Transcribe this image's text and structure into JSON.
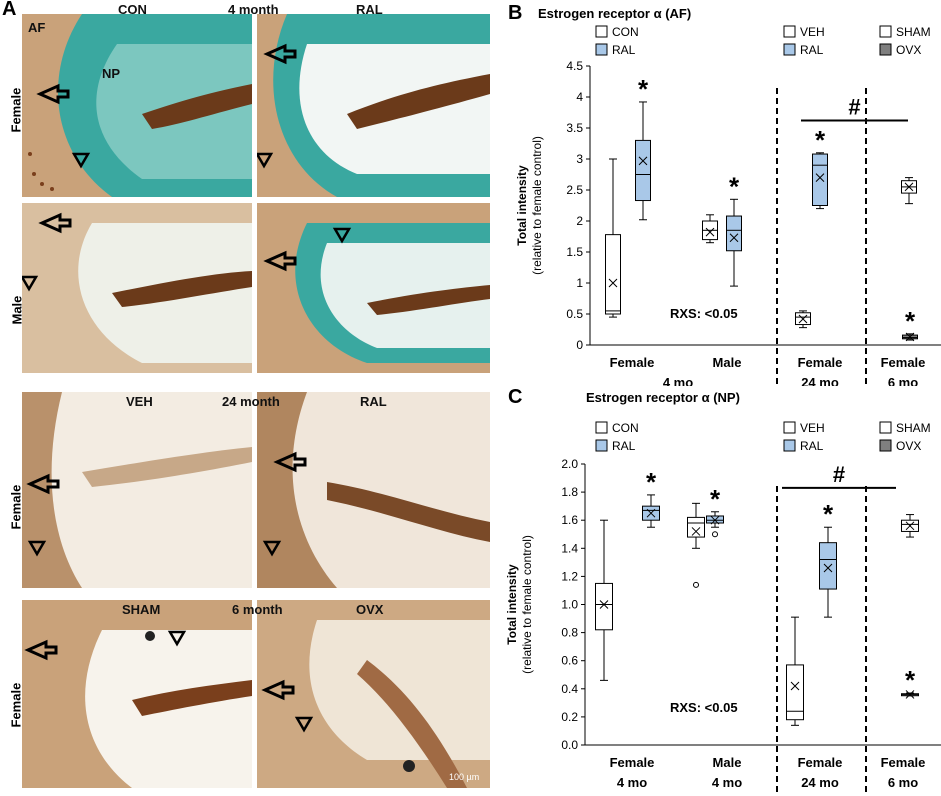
{
  "panel_a": {
    "letter": "A",
    "rows": [
      {
        "side_label": "Female",
        "left_label": "CON",
        "mid_label": "4 month",
        "right_label": "RAL"
      },
      {
        "side_label": "Male"
      },
      {
        "side_label": "Female",
        "left_label": "VEH",
        "mid_label": "24 month",
        "right_label": "RAL"
      },
      {
        "side_label": "Female",
        "left_label": "SHAM",
        "mid_label": "6 month",
        "right_label": "OVX"
      }
    ],
    "af_label": "AF",
    "np_label": "NP",
    "scale_label": "100 µm",
    "colors": {
      "tissue": "#c9a27a",
      "stain": "#3aa8a0",
      "pale": "#f3ece2",
      "dark": "#6b3a1a"
    }
  },
  "chart_data": [
    {
      "panel": "B",
      "type": "box",
      "title": "Estrogen receptor α (AF)",
      "ylabel": "Total intensity",
      "ylabel_sub": "(relative to female control)",
      "ylim": [
        0,
        4.5
      ],
      "yticks": [
        "0",
        "0.5",
        "1",
        "1.5",
        "2",
        "2.5",
        "3",
        "3.5",
        "4",
        "4.5"
      ],
      "legends": [
        {
          "items": [
            {
              "name": "CON",
              "color": "#ffffff"
            },
            {
              "name": "RAL",
              "color": "#a9c8e8"
            }
          ]
        },
        {
          "items": [
            {
              "name": "VEH",
              "color": "#ffffff"
            },
            {
              "name": "RAL",
              "color": "#a9c8e8"
            }
          ]
        },
        {
          "items": [
            {
              "name": "SHAM",
              "color": "#ffffff"
            },
            {
              "name": "OVX",
              "color": "#7f7f7f"
            }
          ]
        }
      ],
      "x_groups": [
        {
          "label": "Female",
          "sub": "4 mo"
        },
        {
          "label": "Male",
          "sub": ""
        },
        {
          "label": "Female",
          "sub": "24 mo"
        },
        {
          "label": "Female",
          "sub": "6 mo"
        }
      ],
      "boxes": [
        {
          "group": 0,
          "fill": "#ffffff",
          "min": 0.45,
          "q1": 0.5,
          "median": 0.55,
          "q3": 1.78,
          "max": 3.0,
          "mean": 1.0,
          "star": false
        },
        {
          "group": 0,
          "fill": "#a9c8e8",
          "min": 2.02,
          "q1": 2.33,
          "median": 2.75,
          "q3": 3.3,
          "max": 3.92,
          "mean": 2.97,
          "star": true
        },
        {
          "group": 1,
          "fill": "#ffffff",
          "min": 1.65,
          "q1": 1.7,
          "median": 1.85,
          "q3": 2.0,
          "max": 2.1,
          "mean": 1.82,
          "star": false
        },
        {
          "group": 1,
          "fill": "#a9c8e8",
          "min": 0.95,
          "q1": 1.52,
          "median": 1.85,
          "q3": 2.08,
          "max": 2.35,
          "mean": 1.73,
          "star": true
        },
        {
          "group": 2,
          "fill": "#ffffff",
          "min": 0.28,
          "q1": 0.33,
          "median": 0.45,
          "q3": 0.52,
          "max": 0.55,
          "mean": 0.42,
          "star": false
        },
        {
          "group": 2,
          "fill": "#a9c8e8",
          "min": 2.2,
          "q1": 2.25,
          "median": 2.9,
          "q3": 3.08,
          "max": 3.1,
          "mean": 2.7,
          "star": true
        },
        {
          "group": 3,
          "fill": "#ffffff",
          "min": 2.28,
          "q1": 2.45,
          "median": 2.55,
          "q3": 2.65,
          "max": 2.7,
          "mean": 2.55,
          "star": false
        },
        {
          "group": 3,
          "fill": "#7f7f7f",
          "min": 0.08,
          "q1": 0.1,
          "median": 0.12,
          "q3": 0.16,
          "max": 0.18,
          "mean": 0.13,
          "star": true
        }
      ],
      "annotation": "RXS: <0.05",
      "hash": "#",
      "hash_y": 3.62
    },
    {
      "panel": "C",
      "type": "box",
      "title": "Estrogen receptor α (NP)",
      "ylabel": "Total intensity",
      "ylabel_sub": "(relative to female control)",
      "ylim": [
        0,
        2.0
      ],
      "yticks": [
        "0.0",
        "0.2",
        "0.4",
        "0.6",
        "0.8",
        "1.0",
        "1.2",
        "1.4",
        "1.6",
        "1.8",
        "2.0"
      ],
      "legends": [
        {
          "items": [
            {
              "name": "CON",
              "color": "#ffffff"
            },
            {
              "name": "RAL",
              "color": "#a9c8e8"
            }
          ]
        },
        {
          "items": [
            {
              "name": "VEH",
              "color": "#ffffff"
            },
            {
              "name": "RAL",
              "color": "#a9c8e8"
            }
          ]
        },
        {
          "items": [
            {
              "name": "SHAM",
              "color": "#ffffff"
            },
            {
              "name": "OVX",
              "color": "#7f7f7f"
            }
          ]
        }
      ],
      "x_groups": [
        {
          "label": "Female",
          "sub": "4 mo"
        },
        {
          "label": "Male",
          "sub": "4 mo"
        },
        {
          "label": "Female",
          "sub": "24 mo"
        },
        {
          "label": "Female",
          "sub": "6 mo"
        }
      ],
      "boxes": [
        {
          "group": 0,
          "fill": "#ffffff",
          "min": 0.46,
          "q1": 0.82,
          "median": 1.0,
          "q3": 1.15,
          "max": 1.6,
          "mean": 1.0,
          "star": false,
          "outliers": []
        },
        {
          "group": 0,
          "fill": "#a9c8e8",
          "min": 1.55,
          "q1": 1.6,
          "median": 1.67,
          "q3": 1.7,
          "max": 1.78,
          "mean": 1.65,
          "star": true,
          "outliers": []
        },
        {
          "group": 1,
          "fill": "#ffffff",
          "min": 1.4,
          "q1": 1.48,
          "median": 1.58,
          "q3": 1.62,
          "max": 1.72,
          "mean": 1.52,
          "star": false,
          "outliers": [
            1.14
          ]
        },
        {
          "group": 1,
          "fill": "#a9c8e8",
          "min": 1.55,
          "q1": 1.58,
          "median": 1.6,
          "q3": 1.63,
          "max": 1.66,
          "mean": 1.6,
          "star": true,
          "outliers": [
            1.5
          ]
        },
        {
          "group": 2,
          "fill": "#ffffff",
          "min": 0.14,
          "q1": 0.18,
          "median": 0.24,
          "q3": 0.57,
          "max": 0.91,
          "mean": 0.42,
          "star": false,
          "outliers": []
        },
        {
          "group": 2,
          "fill": "#a9c8e8",
          "min": 0.91,
          "q1": 1.11,
          "median": 1.32,
          "q3": 1.44,
          "max": 1.55,
          "mean": 1.26,
          "star": true,
          "outliers": []
        },
        {
          "group": 3,
          "fill": "#ffffff",
          "min": 1.48,
          "q1": 1.52,
          "median": 1.57,
          "q3": 1.6,
          "max": 1.64,
          "mean": 1.56,
          "star": false,
          "outliers": []
        },
        {
          "group": 3,
          "fill": "#7f7f7f",
          "min": 0.35,
          "q1": 0.355,
          "median": 0.36,
          "q3": 0.365,
          "max": 0.37,
          "mean": 0.36,
          "star": true,
          "outliers": []
        }
      ],
      "annotation": "RXS: <0.05",
      "hash": "#",
      "hash_y": 1.83
    }
  ],
  "letters": {
    "b": "B",
    "c": "C"
  },
  "star": "*"
}
